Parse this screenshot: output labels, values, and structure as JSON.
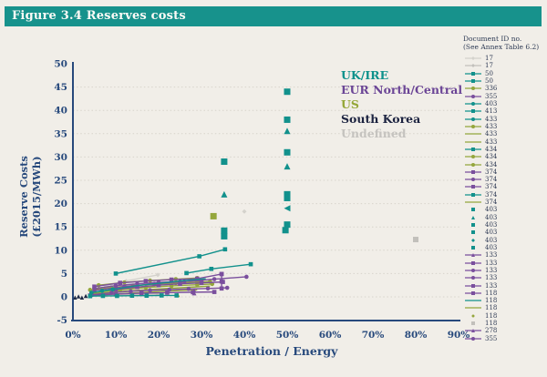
{
  "figure": {
    "title": "Figure 3.4 Reserves costs"
  },
  "chart_data": {
    "type": "scatter",
    "title": "Figure 3.4 Reserves costs",
    "xlabel": "Penetration / Energy",
    "ylabel": "Reserve Costs (£2015/MWh)",
    "xlim_pct": [
      0,
      90
    ],
    "ylim": [
      -5,
      50
    ],
    "x_ticks": [
      "0%",
      "10%",
      "20%",
      "30%",
      "40%",
      "50%",
      "60%",
      "70%",
      "80%",
      "90%"
    ],
    "y_ticks": [
      50,
      45,
      40,
      35,
      30,
      25,
      20,
      15,
      10,
      5,
      0,
      -5
    ],
    "gridlines": [
      45,
      40,
      35,
      30,
      25,
      20,
      15,
      10,
      5,
      0
    ],
    "grid_style": "dotted",
    "palette": {
      "teal": "#12918c",
      "purple": "#7a4f9d",
      "olive": "#94a63c",
      "navy": "#1d2a47",
      "gray": "#c2c0bb",
      "grayLight": "#d4d2cc"
    },
    "regions": [
      {
        "name": "UK/IRE",
        "color": "#0d918b"
      },
      {
        "name": "EUR North/Central",
        "color": "#6b4596"
      },
      {
        "name": "US",
        "color": "#94a637"
      },
      {
        "name": "South Korea",
        "color": "#1c2340"
      },
      {
        "name": "Undefined",
        "color": "#c5c3bf"
      }
    ],
    "series": [
      {
        "region": "Undefined",
        "doc": "17",
        "color": "grayLight",
        "marker": "diamond",
        "line": true,
        "size": 5,
        "points": [
          [
            7.7,
            2.3
          ],
          [
            12.4,
            3.4
          ],
          [
            19.8,
            4.7
          ]
        ]
      },
      {
        "region": "Undefined",
        "doc": "17",
        "color": "gray",
        "marker": "square",
        "line": true,
        "size": 4.5,
        "points": [
          [
            7.5,
            0.4
          ],
          [
            13.5,
            0.5
          ],
          [
            19.8,
            0.6
          ]
        ]
      },
      {
        "region": "Undefined",
        "doc": "118",
        "color": "gray",
        "marker": "square",
        "line": false,
        "size": 6,
        "points": [
          [
            80,
            12.3
          ]
        ]
      },
      {
        "region": "Undefined",
        "doc": "118",
        "color": "grayLight",
        "marker": "diamond",
        "line": false,
        "size": 5,
        "points": [
          [
            40,
            18.3
          ]
        ]
      },
      {
        "region": "US",
        "doc": "336",
        "color": "olive",
        "marker": "circle",
        "line": true,
        "size": 4.6,
        "points": [
          [
            4,
            1.5
          ],
          [
            9,
            2.0
          ],
          [
            14,
            2.4
          ],
          [
            19,
            2.7
          ],
          [
            24,
            2.95
          ],
          [
            29,
            3.15
          ],
          [
            32,
            3.3
          ]
        ]
      },
      {
        "region": "US",
        "doc": "433",
        "color": "olive",
        "marker": "circle",
        "line": true,
        "size": 4.6,
        "points": [
          [
            5,
            0.9
          ],
          [
            11,
            1.5
          ],
          [
            17,
            2.0
          ],
          [
            23,
            2.35
          ],
          [
            29,
            2.6
          ],
          [
            32.5,
            2.75
          ]
        ]
      },
      {
        "region": "US",
        "doc": "433",
        "color": "olive",
        "marker": "none",
        "line": true,
        "size": 0,
        "points": [
          [
            4,
            0.6
          ],
          [
            12,
            1.2
          ],
          [
            20,
            1.7
          ],
          [
            28,
            2.1
          ],
          [
            32,
            2.3
          ]
        ]
      },
      {
        "region": "US",
        "doc": "434",
        "color": "olive",
        "marker": "circle",
        "line": true,
        "size": 4.6,
        "points": [
          [
            6,
            2.5
          ],
          [
            12,
            3.1
          ],
          [
            18,
            3.5
          ],
          [
            24,
            3.8
          ],
          [
            29,
            4.05
          ]
        ]
      },
      {
        "region": "US",
        "doc": "118",
        "color": "olive",
        "marker": "none",
        "line": true,
        "size": 0,
        "points": [
          [
            5,
            0.35
          ],
          [
            13,
            0.8
          ],
          [
            21,
            1.2
          ],
          [
            29,
            1.5
          ]
        ]
      },
      {
        "region": "US",
        "doc": "118",
        "color": "olive",
        "marker": "triangle",
        "line": false,
        "size": 5.5,
        "points": [
          [
            24.4,
            0.5
          ]
        ]
      },
      {
        "region": "US",
        "doc": "433",
        "color": "olive",
        "marker": "square",
        "line": false,
        "size": 7,
        "points": [
          [
            32.8,
            17.3
          ]
        ]
      },
      {
        "region": "EUR North/Central",
        "doc": "374",
        "color": "purple",
        "marker": "square",
        "line": true,
        "size": 4.6,
        "points": [
          [
            4,
            0.3
          ],
          [
            10,
            0.6
          ],
          [
            16,
            0.8
          ],
          [
            22,
            0.9
          ],
          [
            28,
            1.0
          ],
          [
            33,
            1.05
          ]
        ]
      },
      {
        "region": "EUR North/Central",
        "doc": "355",
        "color": "purple",
        "marker": "circle",
        "line": true,
        "size": 4.6,
        "points": [
          [
            5,
            1.4
          ],
          [
            12,
            2.2
          ],
          [
            19,
            2.8
          ],
          [
            26,
            3.3
          ],
          [
            33,
            3.8
          ],
          [
            40.5,
            4.3
          ]
        ]
      },
      {
        "region": "EUR North/Central",
        "doc": "374",
        "color": "purple",
        "marker": "square",
        "line": true,
        "size": 4.6,
        "points": [
          [
            5,
            2.2
          ],
          [
            11,
            3.0
          ],
          [
            17,
            3.4
          ],
          [
            23,
            3.7
          ],
          [
            29,
            3.9
          ],
          [
            34.7,
            4.9
          ]
        ]
      },
      {
        "region": "EUR North/Central",
        "doc": "374",
        "color": "purple",
        "marker": "circle",
        "line": true,
        "size": 4.6,
        "points": [
          [
            4.5,
            0.45
          ],
          [
            9,
            0.9
          ],
          [
            13.5,
            1.2
          ],
          [
            18,
            1.4
          ],
          [
            22.5,
            1.55
          ],
          [
            27,
            1.7
          ],
          [
            31.5,
            1.8
          ],
          [
            36,
            1.95
          ]
        ]
      },
      {
        "region": "EUR North/Central",
        "doc": "133",
        "color": "purple",
        "marker": "square",
        "line": true,
        "size": 4.6,
        "points": [
          [
            10,
            1.6
          ],
          [
            15,
            2.1
          ],
          [
            20,
            2.5
          ],
          [
            25,
            2.8
          ],
          [
            30,
            3.0
          ],
          [
            35,
            3.2
          ]
        ]
      },
      {
        "region": "EUR North/Central",
        "doc": "133",
        "color": "purple",
        "marker": "circle",
        "line": true,
        "size": 4.6,
        "points": [
          [
            5,
            1.8
          ],
          [
            10,
            2.4
          ],
          [
            15,
            2.8
          ],
          [
            20,
            3.1
          ],
          [
            25,
            3.3
          ],
          [
            30,
            3.45
          ]
        ]
      },
      {
        "region": "EUR North/Central",
        "doc": "118",
        "color": "purple",
        "marker": "square",
        "line": true,
        "size": 4.6,
        "points": [
          [
            34.7,
            4.9
          ],
          [
            34.7,
            3.3
          ],
          [
            34.7,
            1.8
          ]
        ]
      },
      {
        "region": "EUR North/Central",
        "doc": "278",
        "color": "purple",
        "marker": "triangle",
        "line": false,
        "size": 5,
        "points": [
          [
            28.3,
            0.8
          ],
          [
            28.3,
            1.4
          ]
        ]
      },
      {
        "region": "UK/IRE",
        "doc": "50",
        "color": "teal",
        "marker": "square",
        "line": true,
        "size": 4.6,
        "points": [
          [
            4,
            0.15
          ],
          [
            7,
            0.2
          ],
          [
            10.3,
            0.2
          ],
          [
            13.8,
            0.25
          ],
          [
            17.2,
            0.25
          ],
          [
            20.7,
            0.3
          ],
          [
            24.2,
            0.3
          ]
        ]
      },
      {
        "region": "UK/IRE",
        "doc": "50",
        "color": "teal",
        "marker": "square",
        "line": true,
        "size": 4.6,
        "points": [
          [
            10,
            5.0
          ],
          [
            29.5,
            8.7
          ],
          [
            35.5,
            10.2
          ]
        ]
      },
      {
        "region": "UK/IRE",
        "doc": "403",
        "color": "teal",
        "marker": "square",
        "line": true,
        "size": 4.6,
        "points": [
          [
            26.5,
            5.1
          ],
          [
            32.3,
            6.0
          ],
          [
            41.5,
            7.0
          ]
        ]
      },
      {
        "region": "UK/IRE",
        "doc": "374",
        "color": "teal",
        "marker": "none",
        "line": true,
        "size": 0,
        "points": [
          [
            5,
            1.0
          ],
          [
            15,
            2.4
          ],
          [
            25,
            3.4
          ],
          [
            31,
            3.9
          ]
        ]
      },
      {
        "region": "UK/IRE",
        "doc": "433",
        "color": "teal",
        "marker": "circle",
        "line": true,
        "size": 4.6,
        "points": [
          [
            4.3,
            0.9
          ],
          [
            6.8,
            1.3
          ],
          [
            9.3,
            1.6
          ]
        ]
      },
      {
        "region": "UK/IRE",
        "doc": "403",
        "color": "teal",
        "marker": "square",
        "line": false,
        "size": 7,
        "points": [
          [
            35.3,
            29
          ],
          [
            50,
            44
          ],
          [
            50,
            38
          ],
          [
            50,
            31
          ],
          [
            50,
            22
          ],
          [
            50,
            21.2
          ],
          [
            50,
            15.5
          ],
          [
            49.6,
            14.3
          ],
          [
            35.3,
            14.2
          ],
          [
            35.3,
            13.0
          ]
        ]
      },
      {
        "region": "UK/IRE",
        "doc": "403",
        "color": "teal",
        "marker": "triangle",
        "line": false,
        "size": 7,
        "points": [
          [
            35.3,
            22
          ],
          [
            50,
            35.6
          ],
          [
            50,
            28
          ]
        ]
      },
      {
        "region": "UK/IRE",
        "doc": "403",
        "color": "teal",
        "marker": "tri-left",
        "line": false,
        "size": 7,
        "points": [
          [
            50,
            19
          ]
        ]
      },
      {
        "region": "South Korea",
        "doc": "",
        "color": "navy",
        "marker": "triangle",
        "line": false,
        "size": 4.5,
        "points": [
          [
            0.5,
            -0.15
          ],
          [
            1.3,
            0.1
          ],
          [
            2.1,
            -0.15
          ],
          [
            3,
            0.2
          ]
        ]
      }
    ],
    "legend": {
      "header_line1": "Document ID no.",
      "header_line2": "(See Annex Table 6.2)",
      "entries": [
        {
          "id": "17",
          "color": "grayLight",
          "marker": "diamond",
          "line": true
        },
        {
          "id": "17",
          "color": "gray",
          "marker": "diamond",
          "line": true
        },
        {
          "id": "50",
          "color": "teal",
          "marker": "square",
          "line": true
        },
        {
          "id": "50",
          "color": "teal",
          "marker": "square",
          "line": true
        },
        {
          "id": "336",
          "color": "olive",
          "marker": "circle",
          "line": true
        },
        {
          "id": "355",
          "color": "purple",
          "marker": "circle",
          "line": true
        },
        {
          "id": "403",
          "color": "teal",
          "marker": "circle",
          "line": true
        },
        {
          "id": "413",
          "color": "teal",
          "marker": "square",
          "line": true
        },
        {
          "id": "433",
          "color": "teal",
          "marker": "circle",
          "line": true
        },
        {
          "id": "433",
          "color": "olive",
          "marker": "circle",
          "line": true
        },
        {
          "id": "433",
          "color": "olive",
          "marker": "none",
          "line": true
        },
        {
          "id": "433",
          "color": "olive",
          "marker": "none",
          "line": true
        },
        {
          "id": "434",
          "color": "teal",
          "marker": "square",
          "line": true
        },
        {
          "id": "434",
          "color": "olive",
          "marker": "circle",
          "line": true
        },
        {
          "id": "434",
          "color": "olive",
          "marker": "circle",
          "line": true
        },
        {
          "id": "374",
          "color": "purple",
          "marker": "square",
          "line": true
        },
        {
          "id": "374",
          "color": "purple",
          "marker": "circle",
          "line": true
        },
        {
          "id": "374",
          "color": "purple",
          "marker": "square",
          "line": true
        },
        {
          "id": "374",
          "color": "teal",
          "marker": "square",
          "line": true
        },
        {
          "id": "374",
          "color": "olive",
          "marker": "none",
          "line": true
        },
        {
          "id": "403",
          "color": "teal",
          "marker": "square",
          "line": false
        },
        {
          "id": "403",
          "color": "teal",
          "marker": "triangle",
          "line": false
        },
        {
          "id": "403",
          "color": "teal",
          "marker": "square",
          "line": false
        },
        {
          "id": "403",
          "color": "teal",
          "marker": "square",
          "line": false
        },
        {
          "id": "403",
          "color": "teal",
          "marker": "diamond",
          "line": false
        },
        {
          "id": "403",
          "color": "teal",
          "marker": "square",
          "line": false
        },
        {
          "id": "133",
          "color": "purple",
          "marker": "triangle",
          "line": true
        },
        {
          "id": "133",
          "color": "purple",
          "marker": "square",
          "line": true
        },
        {
          "id": "133",
          "color": "purple",
          "marker": "circle",
          "line": true
        },
        {
          "id": "133",
          "color": "purple",
          "marker": "circle",
          "line": true
        },
        {
          "id": "133",
          "color": "purple",
          "marker": "square",
          "line": true
        },
        {
          "id": "118",
          "color": "purple",
          "marker": "square",
          "line": true
        },
        {
          "id": "118",
          "color": "teal",
          "marker": "none",
          "line": true
        },
        {
          "id": "118",
          "color": "olive",
          "marker": "none",
          "line": true
        },
        {
          "id": "118",
          "color": "olive",
          "marker": "dot",
          "line": false
        },
        {
          "id": "118",
          "color": "gray",
          "marker": "square",
          "line": false
        },
        {
          "id": "278",
          "color": "purple",
          "marker": "triangle",
          "line": true
        },
        {
          "id": "355",
          "color": "purple",
          "marker": "circle",
          "line": true
        }
      ]
    },
    "axis_color": "#27497c",
    "grid_color": "#d8d4cb"
  }
}
